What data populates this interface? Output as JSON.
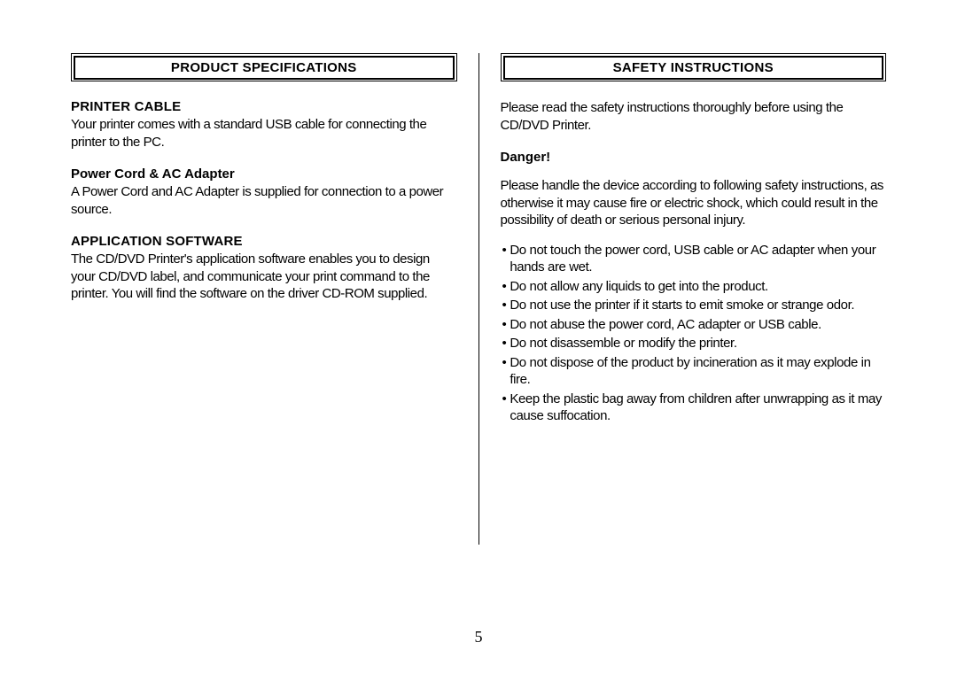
{
  "page_number": "5",
  "left": {
    "section_title": "PRODUCT SPECIFICATIONS",
    "blocks": [
      {
        "heading": "PRINTER CABLE",
        "headingClass": "subheading",
        "text": "Your printer comes with a standard USB cable for connecting the printer to the PC."
      },
      {
        "heading": "Power Cord & AC Adapter",
        "headingClass": "subheading-mixed",
        "text": "A Power Cord and AC Adapter is supplied for connection to a power source."
      },
      {
        "heading": "APPLICATION SOFTWARE",
        "headingClass": "subheading",
        "text": "The CD/DVD Printer's application software enables you to design your CD/DVD label, and communicate your print command to the printer. You will find the software on the driver CD-ROM supplied."
      }
    ]
  },
  "right": {
    "section_title": "SAFETY INSTRUCTIONS",
    "intro": "Please read the safety instructions thoroughly before using the CD/DVD Printer.",
    "danger_label": "Danger!",
    "danger_text": "Please handle the device according to following safety instructions, as otherwise it may cause fire or electric shock, which could result in the possibility of death or serious personal injury.",
    "bullets": [
      "Do not touch the power cord, USB cable or AC adapter when your hands are wet.",
      "Do not allow any liquids to get into the product.",
      "Do not use the printer if it starts to emit smoke or strange odor.",
      "Do not abuse the power cord, AC  adapter or USB cable.",
      "Do not disassemble or modify the printer.",
      "Do not dispose of the product by incineration as it may explode in fire.",
      "Keep the plastic bag away  from children after unwrapping as it may cause suffocation."
    ]
  }
}
